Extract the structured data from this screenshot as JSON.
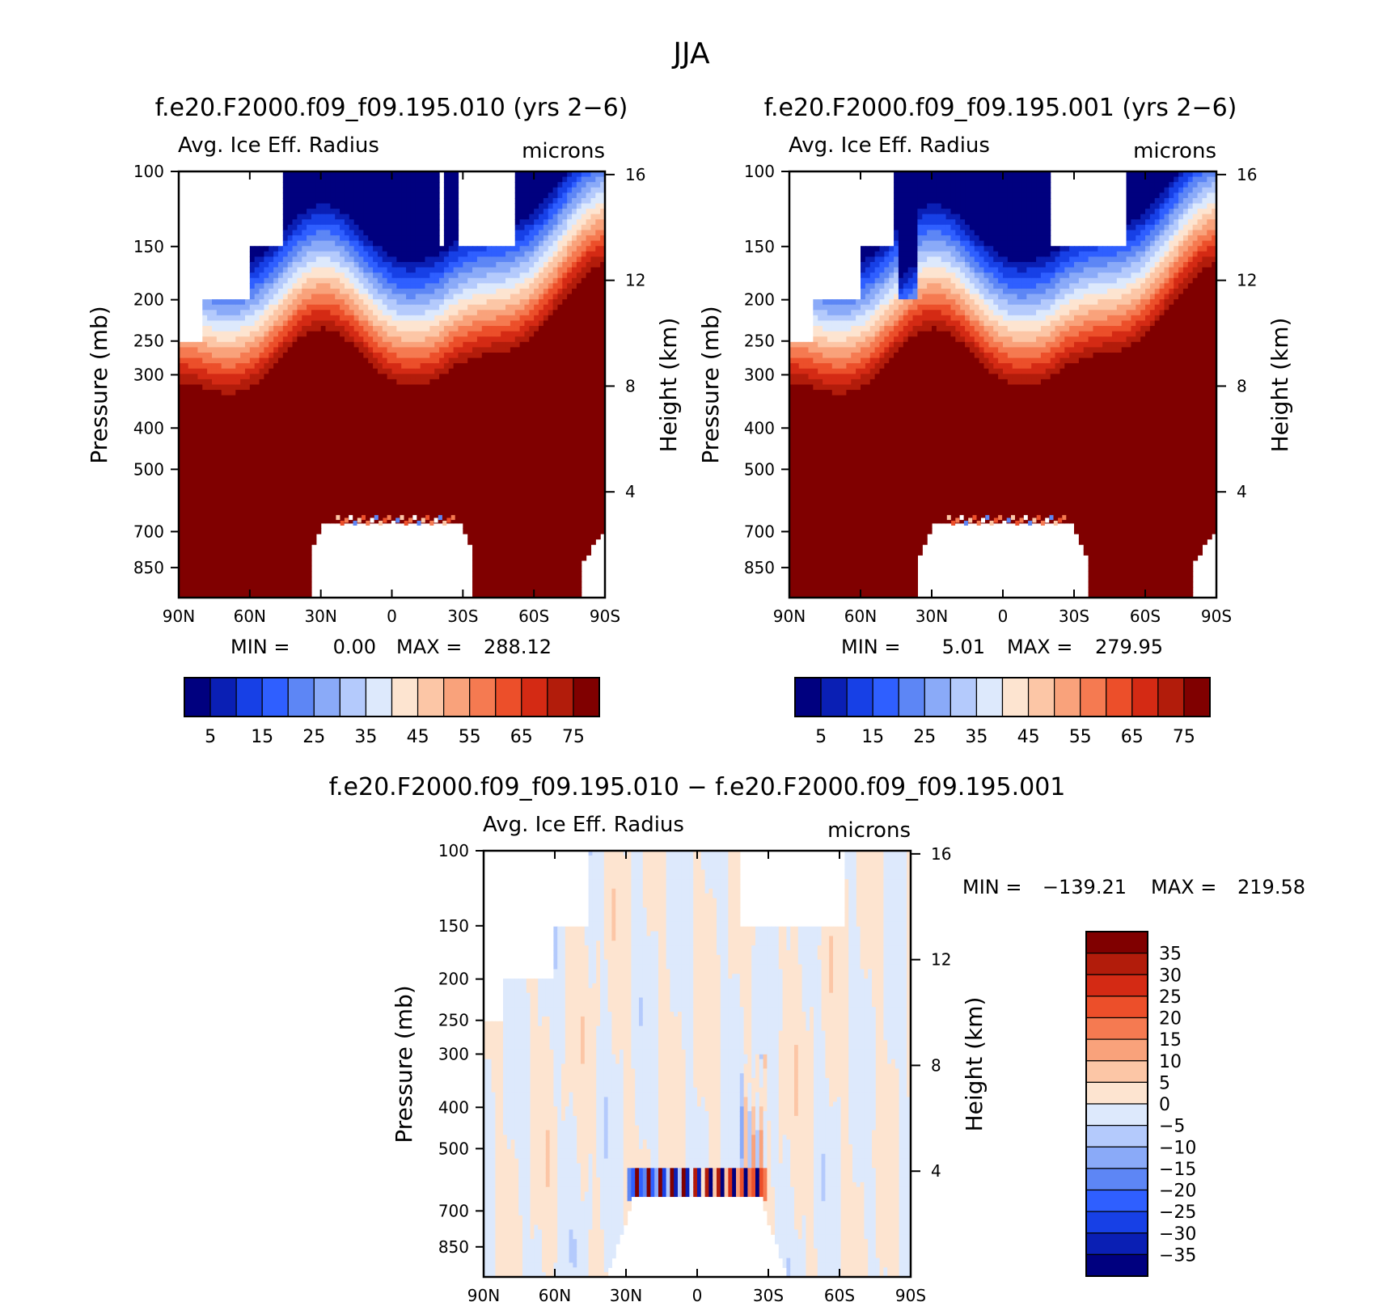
{
  "figure": {
    "title": "JJA"
  },
  "panels": [
    {
      "id": "case",
      "title": "f.e20.F2000.f09_f09.195.010 (yrs 2−6)",
      "variable": "Avg. Ice Eff. Radius",
      "units": "microns",
      "ylabel": "Pressure (mb)",
      "ylabel_right": "Height (km)",
      "stats": {
        "min_label": "MIN =",
        "min": "0.00",
        "max_label": "MAX =",
        "max": "288.12"
      },
      "features": {
        "gap_40n_to_90n": false,
        "gaps_sh": [
          [
            22,
            24
          ],
          [
            23.5,
            26
          ],
          [
            25.5,
            27
          ]
        ],
        "white_box_sh": [
          27,
          52
        ],
        "low_white_range": [
          -35,
          35
        ]
      }
    },
    {
      "id": "control",
      "title": "f.e20.F2000.f09_f09.195.001 (yrs 2−6)",
      "variable": "Avg. Ice Eff. Radius",
      "units": "microns",
      "ylabel": "Pressure (mb)",
      "ylabel_right": "Height (km)",
      "stats": {
        "min_label": "MIN =",
        "min": "5.01",
        "max_label": "MAX =",
        "max": "279.95"
      },
      "features": {
        "gaps_sh": [],
        "white_box_sh": [
          20,
          52
        ],
        "low_white_range": [
          -37,
          37
        ]
      }
    },
    {
      "id": "diff",
      "title": "f.e20.F2000.f09_f09.195.010 − f.e20.F2000.f09_f09.195.001",
      "variable": "Avg. Ice Eff. Radius",
      "units": "microns",
      "ylabel": "Pressure (mb)",
      "ylabel_right": "Height (km)",
      "stats": {
        "min_label": "MIN =",
        "min": "−139.21",
        "max_label": "MAX =",
        "max": "219.58"
      }
    }
  ],
  "chart_data": [
    {
      "type": "heatmap",
      "panel": "case",
      "title": "f.e20.F2000.f09_f09.195.010 (yrs 2−6)",
      "xlabel": "",
      "ylabel": "Pressure (mb)",
      "x_ticks": [
        "90N",
        "60N",
        "30N",
        "0",
        "30S",
        "60S",
        "90S"
      ],
      "x_tick_values": [
        90,
        60,
        30,
        0,
        -30,
        -60,
        -90
      ],
      "y_ticks": [
        100,
        150,
        200,
        250,
        300,
        400,
        500,
        700,
        850
      ],
      "y_scale": "log",
      "ylim": [
        100,
        1000
      ],
      "right_axis_ticks": [
        4,
        8,
        12,
        16
      ],
      "levels": [
        5,
        10,
        15,
        20,
        25,
        30,
        35,
        40,
        45,
        50,
        55,
        60,
        65,
        70,
        75
      ],
      "colorbar_labels": [
        "5",
        "15",
        "25",
        "35",
        "45",
        "55",
        "65",
        "75"
      ],
      "colors": [
        "#00007f",
        "#0a1fb4",
        "#1740e6",
        "#2f5fff",
        "#5d86f5",
        "#8aaaf8",
        "#b4cafc",
        "#dde9fc",
        "#fde4d0",
        "#fcc6a6",
        "#f9a27b",
        "#f57a51",
        "#ec4f2a",
        "#d42a14",
        "#b21c0b",
        "#800000"
      ],
      "stats": {
        "min": 0.0,
        "max": 288.12
      }
    },
    {
      "type": "heatmap",
      "panel": "control",
      "title": "f.e20.F2000.f09_f09.195.001 (yrs 2−6)",
      "xlabel": "",
      "ylabel": "Pressure (mb)",
      "x_ticks": [
        "90N",
        "60N",
        "30N",
        "0",
        "30S",
        "60S",
        "90S"
      ],
      "x_tick_values": [
        90,
        60,
        30,
        0,
        -30,
        -60,
        -90
      ],
      "y_ticks": [
        100,
        150,
        200,
        250,
        300,
        400,
        500,
        700,
        850
      ],
      "y_scale": "log",
      "ylim": [
        100,
        1000
      ],
      "right_axis_ticks": [
        4,
        8,
        12,
        16
      ],
      "levels": [
        5,
        10,
        15,
        20,
        25,
        30,
        35,
        40,
        45,
        50,
        55,
        60,
        65,
        70,
        75
      ],
      "colorbar_labels": [
        "5",
        "15",
        "25",
        "35",
        "45",
        "55",
        "65",
        "75"
      ],
      "colors": [
        "#00007f",
        "#0a1fb4",
        "#1740e6",
        "#2f5fff",
        "#5d86f5",
        "#8aaaf8",
        "#b4cafc",
        "#dde9fc",
        "#fde4d0",
        "#fcc6a6",
        "#f9a27b",
        "#f57a51",
        "#ec4f2a",
        "#d42a14",
        "#b21c0b",
        "#800000"
      ],
      "stats": {
        "min": 5.01,
        "max": 279.95
      }
    },
    {
      "type": "heatmap",
      "panel": "diff",
      "title": "f.e20.F2000.f09_f09.195.010 − f.e20.F2000.f09_f09.195.001",
      "xlabel": "",
      "ylabel": "Pressure (mb)",
      "x_ticks": [
        "90N",
        "60N",
        "30N",
        "0",
        "30S",
        "60S",
        "90S"
      ],
      "x_tick_values": [
        90,
        60,
        30,
        0,
        -30,
        -60,
        -90
      ],
      "y_ticks": [
        100,
        150,
        200,
        250,
        300,
        400,
        500,
        700,
        850
      ],
      "y_scale": "log",
      "ylim": [
        100,
        1000
      ],
      "right_axis_ticks": [
        4,
        8,
        12,
        16
      ],
      "levels": [
        -35,
        -30,
        -25,
        -20,
        -15,
        -10,
        -5,
        0,
        5,
        10,
        15,
        20,
        25,
        30,
        35
      ],
      "colorbar_labels": [
        "35",
        "30",
        "25",
        "20",
        "15",
        "10",
        "5",
        "0",
        "−5",
        "−10",
        "−15",
        "−20",
        "−25",
        "−30",
        "−35"
      ],
      "colors": [
        "#00007f",
        "#0a1fb4",
        "#1740e6",
        "#2f5fff",
        "#5d86f5",
        "#8aaaf8",
        "#b4cafc",
        "#dde9fc",
        "#fde4d0",
        "#fcc6a6",
        "#f9a27b",
        "#f57a51",
        "#ec4f2a",
        "#d42a14",
        "#b21c0b",
        "#800000"
      ],
      "stats": {
        "min": -139.21,
        "max": 219.58
      }
    }
  ]
}
